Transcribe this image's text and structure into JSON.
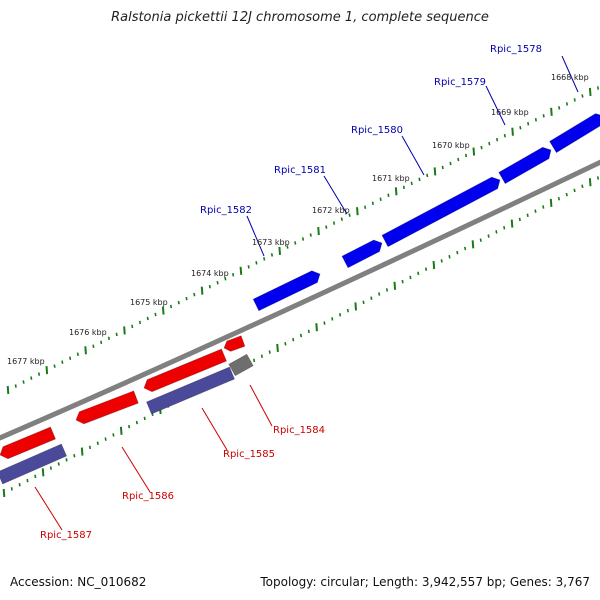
{
  "title": "Ralstonia pickettii 12J chromosome 1, complete sequence",
  "footer": {
    "accession": "Accession: NC_010682",
    "summary": "Topology: circular; Length: 3,942,557 bp; Genes: 3,767"
  },
  "colors": {
    "backbone": "#808080",
    "tick": "#1a7a1a",
    "forward_gene": "#0000ee",
    "reverse_gene": "#ee0000",
    "reverse_cds": "#4b4a9a",
    "pseudo_gene": "#6e6e6e",
    "forward_label": "#0000aa",
    "reverse_label": "#cc0000"
  },
  "scale_labels": [
    "1668 kbp",
    "1669 kbp",
    "1670 kbp",
    "1671 kbp",
    "1672 kbp",
    "1673 kbp",
    "1674 kbp",
    "1675 kbp",
    "1676 kbp",
    "1677 kbp"
  ],
  "forward_genes": [
    {
      "label": "Rpic_1578"
    },
    {
      "label": "Rpic_1579"
    },
    {
      "label": "Rpic_1580"
    },
    {
      "label": "Rpic_1581"
    },
    {
      "label": "Rpic_1582"
    }
  ],
  "reverse_genes": [
    {
      "label": "Rpic_1584"
    },
    {
      "label": "Rpic_1585"
    },
    {
      "label": "Rpic_1586"
    },
    {
      "label": "Rpic_1587"
    }
  ]
}
